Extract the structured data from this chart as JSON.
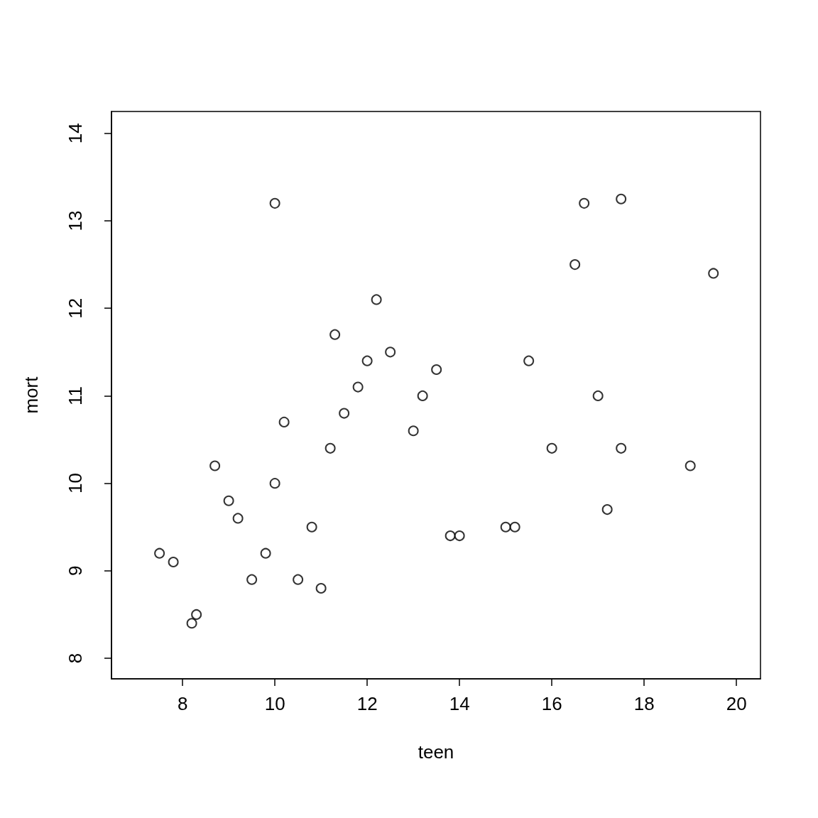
{
  "chart_data": {
    "type": "scatter",
    "xlabel": "teen",
    "ylabel": "mort",
    "marker": "circle",
    "grid": false,
    "xlim": [
      6.46,
      20.52
    ],
    "xticks": [
      8,
      10,
      12,
      14,
      16,
      18,
      20
    ],
    "ylim": [
      7.765,
      14.25
    ],
    "yticks": [
      8,
      9,
      10,
      11,
      12,
      13,
      14
    ],
    "series": [
      {
        "color": "#000000",
        "x": [
          7.5,
          7.8,
          8.2,
          8.3,
          8.7,
          9.0,
          9.2,
          9.5,
          9.8,
          10.0,
          10.0,
          10.2,
          10.5,
          10.8,
          11.0,
          11.2,
          11.3,
          11.5,
          11.8,
          12.0,
          12.2,
          12.5,
          13.0,
          13.2,
          13.5,
          13.8,
          14.0,
          15.0,
          15.2,
          15.5,
          16.0,
          16.5,
          16.7,
          17.0,
          17.2,
          17.5,
          17.5,
          19.0,
          19.5
        ],
        "values": [
          9.2,
          9.1,
          8.4,
          8.5,
          10.2,
          9.8,
          9.6,
          8.9,
          9.2,
          10.0,
          13.2,
          10.7,
          8.9,
          9.5,
          8.8,
          10.4,
          11.7,
          10.8,
          11.1,
          11.4,
          12.1,
          11.5,
          10.6,
          11.0,
          11.3,
          9.4,
          9.4,
          9.5,
          9.5,
          11.4,
          10.4,
          12.5,
          13.2,
          11.0,
          9.7,
          13.25,
          10.4,
          10.2,
          12.4
        ]
      }
    ]
  }
}
